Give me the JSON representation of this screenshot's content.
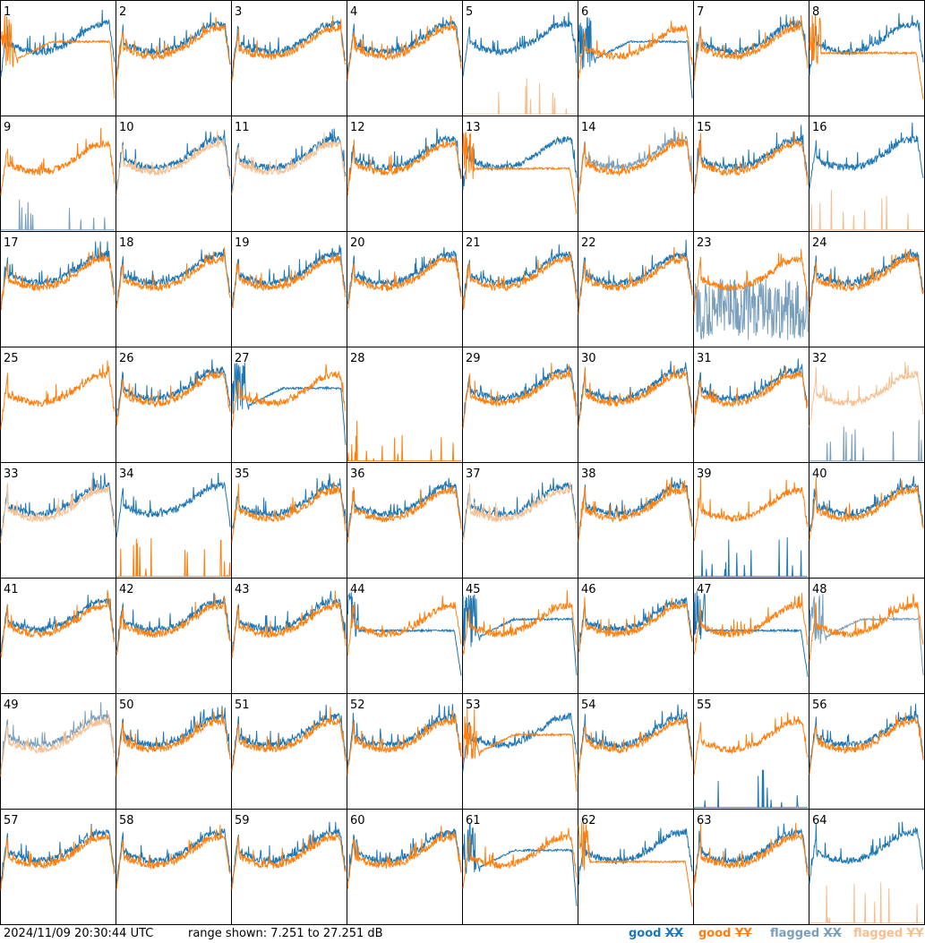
{
  "footer": {
    "timestamp": "2024/11/09 20:30:44 UTC",
    "range_text": "range shown: 7.251 to 27.251 dB",
    "legend": [
      {
        "label": "good XX",
        "color": "#1f77b4"
      },
      {
        "label": "good YY",
        "color": "#ff7f0e"
      },
      {
        "label": "flagged XX",
        "color": "#7a9fbd"
      },
      {
        "label": "flagged YY",
        "color": "#f7bf8f"
      }
    ]
  },
  "chart_data": {
    "type": "line",
    "layout": "8x8 panel grid",
    "ylim_db": [
      7.251,
      27.251
    ],
    "grid": false,
    "panels": [
      {
        "label": "1",
        "xx": "good",
        "yy": "good",
        "xx_shape": "normal",
        "yy_shape": "dip"
      },
      {
        "label": "2",
        "xx": "good",
        "yy": "good",
        "xx_shape": "normal",
        "yy_shape": "normal"
      },
      {
        "label": "3",
        "xx": "good",
        "yy": "good",
        "xx_shape": "normal",
        "yy_shape": "normal"
      },
      {
        "label": "4",
        "xx": "good",
        "yy": "good",
        "xx_shape": "normal",
        "yy_shape": "normal"
      },
      {
        "label": "5",
        "xx": "good",
        "yy": "flagged",
        "xx_shape": "normal",
        "yy_shape": "spikes"
      },
      {
        "label": "6",
        "xx": "good",
        "yy": "good",
        "xx_shape": "dip",
        "yy_shape": "normal"
      },
      {
        "label": "7",
        "xx": "good",
        "yy": "good",
        "xx_shape": "normal",
        "yy_shape": "normal"
      },
      {
        "label": "8",
        "xx": "good",
        "yy": "good",
        "xx_shape": "normal",
        "yy_shape": "flat"
      },
      {
        "label": "9",
        "xx": "flagged",
        "yy": "good",
        "xx_shape": "spikes",
        "yy_shape": "normal"
      },
      {
        "label": "10",
        "xx": "good",
        "yy": "flagged",
        "xx_shape": "normal",
        "yy_shape": "normal"
      },
      {
        "label": "11",
        "xx": "good",
        "yy": "flagged",
        "xx_shape": "normal",
        "yy_shape": "normal"
      },
      {
        "label": "12",
        "xx": "good",
        "yy": "good",
        "xx_shape": "normal",
        "yy_shape": "normal"
      },
      {
        "label": "13",
        "xx": "good",
        "yy": "good",
        "xx_shape": "normal",
        "yy_shape": "flat"
      },
      {
        "label": "14",
        "xx": "flagged",
        "yy": "good",
        "xx_shape": "normal",
        "yy_shape": "normal"
      },
      {
        "label": "15",
        "xx": "good",
        "yy": "good",
        "xx_shape": "normal",
        "yy_shape": "normal"
      },
      {
        "label": "16",
        "xx": "good",
        "yy": "flagged",
        "xx_shape": "normal",
        "yy_shape": "spikes"
      },
      {
        "label": "17",
        "xx": "good",
        "yy": "good",
        "xx_shape": "normal",
        "yy_shape": "normal"
      },
      {
        "label": "18",
        "xx": "good",
        "yy": "good",
        "xx_shape": "normal",
        "yy_shape": "normal"
      },
      {
        "label": "19",
        "xx": "good",
        "yy": "good",
        "xx_shape": "normal",
        "yy_shape": "normal"
      },
      {
        "label": "20",
        "xx": "good",
        "yy": "good",
        "xx_shape": "normal",
        "yy_shape": "normal"
      },
      {
        "label": "21",
        "xx": "good",
        "yy": "good",
        "xx_shape": "normal",
        "yy_shape": "normal"
      },
      {
        "label": "22",
        "xx": "good",
        "yy": "good",
        "xx_shape": "normal",
        "yy_shape": "normal"
      },
      {
        "label": "23",
        "xx": "flagged",
        "yy": "good",
        "xx_shape": "noisy-low",
        "yy_shape": "normal"
      },
      {
        "label": "24",
        "xx": "good",
        "yy": "good",
        "xx_shape": "normal",
        "yy_shape": "normal"
      },
      {
        "label": "25",
        "xx": "good",
        "yy": "good",
        "xx_shape": "absent",
        "yy_shape": "normal"
      },
      {
        "label": "26",
        "xx": "good",
        "yy": "good",
        "xx_shape": "normal",
        "yy_shape": "normal"
      },
      {
        "label": "27",
        "xx": "good",
        "yy": "good",
        "xx_shape": "dip",
        "yy_shape": "normal"
      },
      {
        "label": "28",
        "xx": "good",
        "yy": "good",
        "xx_shape": "absent",
        "yy_shape": "spikes"
      },
      {
        "label": "29",
        "xx": "good",
        "yy": "good",
        "xx_shape": "normal",
        "yy_shape": "normal"
      },
      {
        "label": "30",
        "xx": "good",
        "yy": "good",
        "xx_shape": "normal",
        "yy_shape": "normal"
      },
      {
        "label": "31",
        "xx": "good",
        "yy": "good",
        "xx_shape": "normal",
        "yy_shape": "normal"
      },
      {
        "label": "32",
        "xx": "flagged",
        "yy": "flagged",
        "xx_shape": "spikes",
        "yy_shape": "normal"
      },
      {
        "label": "33",
        "xx": "good",
        "yy": "flagged",
        "xx_shape": "normal",
        "yy_shape": "normal"
      },
      {
        "label": "34",
        "xx": "good",
        "yy": "good",
        "xx_shape": "normal",
        "yy_shape": "spikes"
      },
      {
        "label": "35",
        "xx": "good",
        "yy": "good",
        "xx_shape": "normal",
        "yy_shape": "normal"
      },
      {
        "label": "36",
        "xx": "good",
        "yy": "good",
        "xx_shape": "normal",
        "yy_shape": "normal"
      },
      {
        "label": "37",
        "xx": "good",
        "yy": "flagged",
        "xx_shape": "normal",
        "yy_shape": "normal"
      },
      {
        "label": "38",
        "xx": "good",
        "yy": "good",
        "xx_shape": "normal",
        "yy_shape": "normal"
      },
      {
        "label": "39",
        "xx": "good",
        "yy": "good",
        "xx_shape": "spikes",
        "yy_shape": "normal"
      },
      {
        "label": "40",
        "xx": "good",
        "yy": "good",
        "xx_shape": "normal",
        "yy_shape": "normal"
      },
      {
        "label": "41",
        "xx": "good",
        "yy": "good",
        "xx_shape": "normal",
        "yy_shape": "normal"
      },
      {
        "label": "42",
        "xx": "good",
        "yy": "good",
        "xx_shape": "normal",
        "yy_shape": "normal"
      },
      {
        "label": "43",
        "xx": "good",
        "yy": "good",
        "xx_shape": "normal",
        "yy_shape": "normal"
      },
      {
        "label": "44",
        "xx": "good",
        "yy": "good",
        "xx_shape": "flat",
        "yy_shape": "normal"
      },
      {
        "label": "45",
        "xx": "good",
        "yy": "good",
        "xx_shape": "dip",
        "yy_shape": "normal"
      },
      {
        "label": "46",
        "xx": "good",
        "yy": "good",
        "xx_shape": "normal",
        "yy_shape": "normal"
      },
      {
        "label": "47",
        "xx": "good",
        "yy": "good",
        "xx_shape": "flat",
        "yy_shape": "normal"
      },
      {
        "label": "48",
        "xx": "flagged",
        "yy": "good",
        "xx_shape": "dip",
        "yy_shape": "normal"
      },
      {
        "label": "49",
        "xx": "flagged",
        "yy": "flagged",
        "xx_shape": "normal",
        "yy_shape": "normal"
      },
      {
        "label": "50",
        "xx": "good",
        "yy": "good",
        "xx_shape": "normal",
        "yy_shape": "normal"
      },
      {
        "label": "51",
        "xx": "good",
        "yy": "good",
        "xx_shape": "normal",
        "yy_shape": "normal"
      },
      {
        "label": "52",
        "xx": "good",
        "yy": "good",
        "xx_shape": "normal",
        "yy_shape": "normal"
      },
      {
        "label": "53",
        "xx": "good",
        "yy": "good",
        "xx_shape": "normal",
        "yy_shape": "dip"
      },
      {
        "label": "54",
        "xx": "good",
        "yy": "good",
        "xx_shape": "normal",
        "yy_shape": "normal"
      },
      {
        "label": "55",
        "xx": "good",
        "yy": "good",
        "xx_shape": "spikes",
        "yy_shape": "normal"
      },
      {
        "label": "56",
        "xx": "good",
        "yy": "good",
        "xx_shape": "normal",
        "yy_shape": "normal"
      },
      {
        "label": "57",
        "xx": "good",
        "yy": "good",
        "xx_shape": "normal",
        "yy_shape": "normal"
      },
      {
        "label": "58",
        "xx": "good",
        "yy": "good",
        "xx_shape": "normal",
        "yy_shape": "normal"
      },
      {
        "label": "59",
        "xx": "good",
        "yy": "good",
        "xx_shape": "normal",
        "yy_shape": "normal"
      },
      {
        "label": "60",
        "xx": "good",
        "yy": "good",
        "xx_shape": "normal",
        "yy_shape": "normal"
      },
      {
        "label": "61",
        "xx": "good",
        "yy": "good",
        "xx_shape": "dip",
        "yy_shape": "normal"
      },
      {
        "label": "62",
        "xx": "good",
        "yy": "good",
        "xx_shape": "normal",
        "yy_shape": "flat"
      },
      {
        "label": "63",
        "xx": "good",
        "yy": "good",
        "xx_shape": "normal",
        "yy_shape": "normal"
      },
      {
        "label": "64",
        "xx": "good",
        "yy": "flagged",
        "xx_shape": "normal",
        "yy_shape": "spikes"
      }
    ]
  }
}
